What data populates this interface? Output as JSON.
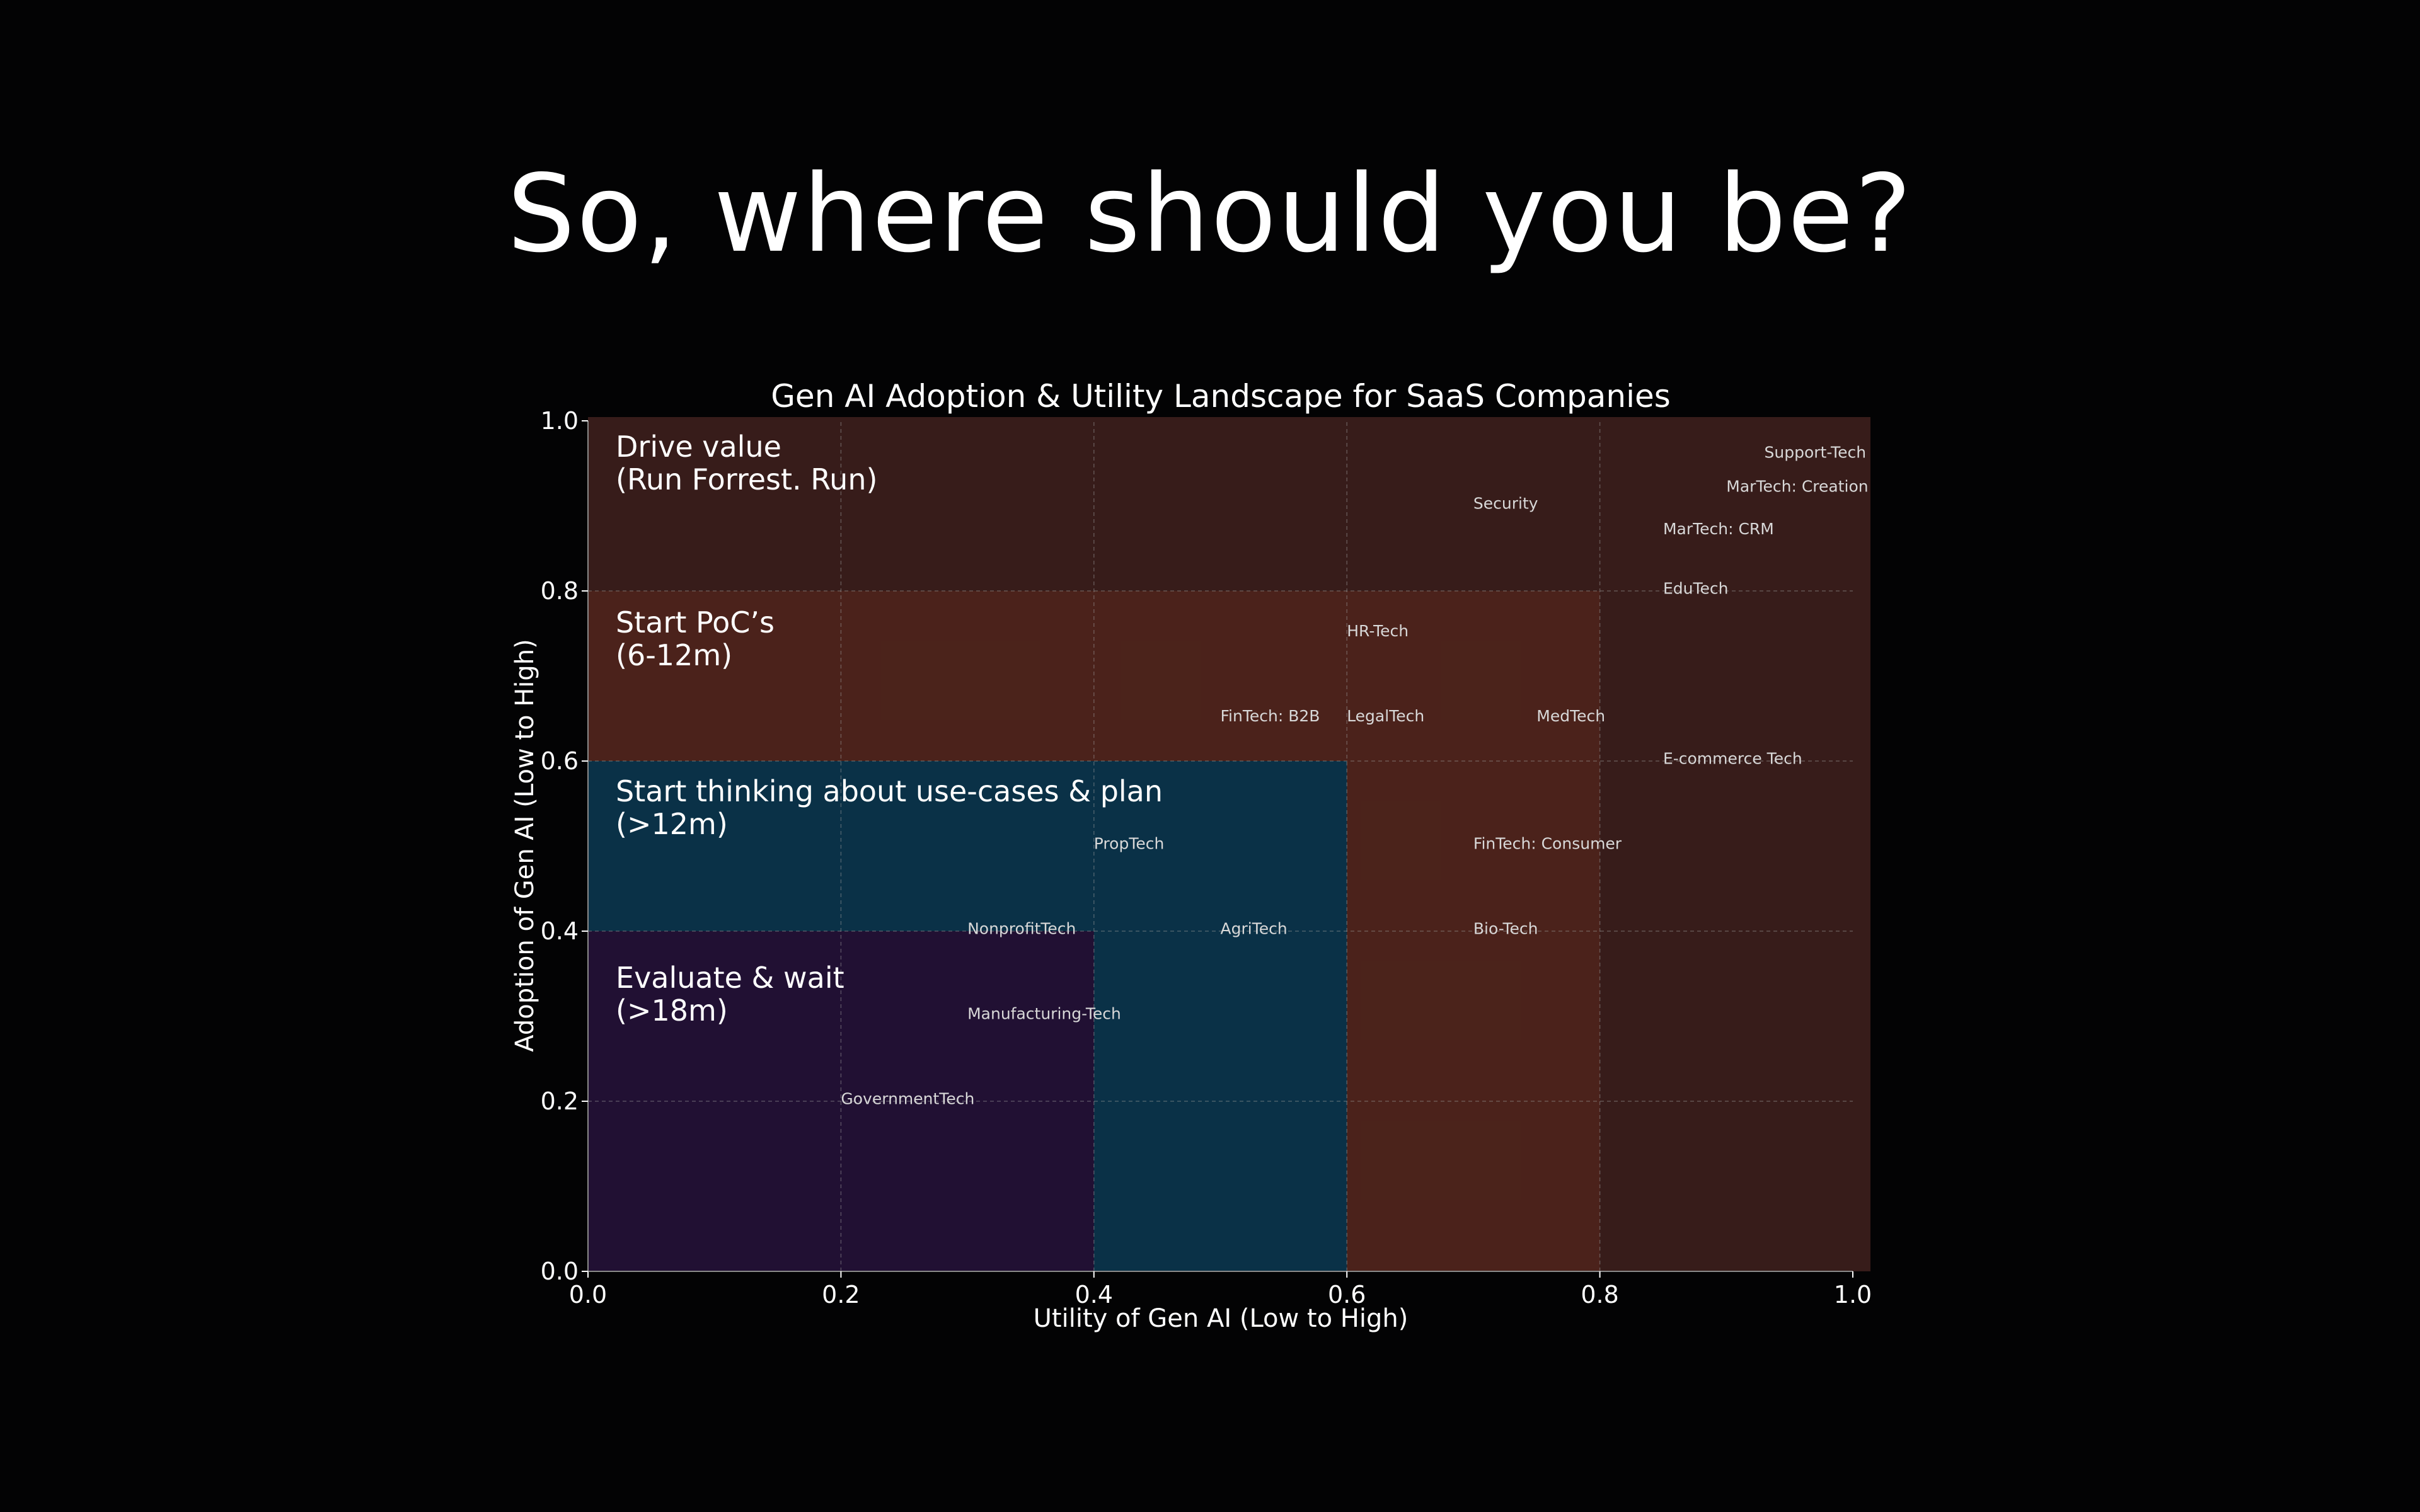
{
  "slide": {
    "title": "So, where should you be?"
  },
  "colors": {
    "background": "#030304",
    "plot_background": "#371c1a",
    "grid": "#9a9a9a",
    "text": "#ffffff",
    "point_text": "#d8d8d8"
  },
  "chart_data": {
    "type": "scatter",
    "title": "Gen AI Adoption & Utility Landscape for SaaS Companies",
    "xlabel": "Utility of Gen AI (Low to High)",
    "ylabel": "Adoption of Gen AI (Low to High)",
    "xlim": [
      0,
      1
    ],
    "ylim": [
      0,
      1
    ],
    "xticks": [
      "0.0",
      "0.2",
      "0.4",
      "0.6",
      "0.8",
      "1.0"
    ],
    "yticks": [
      "0.0",
      "0.2",
      "0.4",
      "0.6",
      "0.8",
      "1.0"
    ],
    "grid": true,
    "regions": [
      {
        "lines": [
          "Drive value",
          "(Run Forrest. Run)"
        ],
        "x0": 0,
        "x1": 1.0,
        "y0": 0.8,
        "y1": 1.0,
        "color": "#371c1a"
      },
      {
        "lines": [
          "Start PoC’s",
          "(6-12m)"
        ],
        "x0": 0,
        "x1": 0.8,
        "y0": 0,
        "y1": 0.8,
        "color": "#4c231b"
      },
      {
        "lines": [
          "Start thinking about use-cases & plan",
          "(>12m)"
        ],
        "x0": 0,
        "x1": 0.6,
        "y0": 0,
        "y1": 0.6,
        "color": "#06334a"
      },
      {
        "lines": [
          "Evaluate & wait",
          "(>18m)"
        ],
        "x0": 0,
        "x1": 0.4,
        "y0": 0,
        "y1": 0.4,
        "color": "#230f33"
      }
    ],
    "points": [
      {
        "label": "Support-Tech",
        "x": 0.93,
        "y": 0.97
      },
      {
        "label": "MarTech: Creation",
        "x": 0.9,
        "y": 0.93
      },
      {
        "label": "Security",
        "x": 0.7,
        "y": 0.91
      },
      {
        "label": "MarTech: CRM",
        "x": 0.85,
        "y": 0.88
      },
      {
        "label": "EduTech",
        "x": 0.85,
        "y": 0.81
      },
      {
        "label": "HR-Tech",
        "x": 0.6,
        "y": 0.76
      },
      {
        "label": "FinTech: B2B",
        "x": 0.5,
        "y": 0.66
      },
      {
        "label": "LegalTech",
        "x": 0.6,
        "y": 0.66
      },
      {
        "label": "MedTech",
        "x": 0.75,
        "y": 0.66
      },
      {
        "label": "E-commerce Tech",
        "x": 0.85,
        "y": 0.61
      },
      {
        "label": "PropTech",
        "x": 0.4,
        "y": 0.51
      },
      {
        "label": "FinTech: Consumer",
        "x": 0.7,
        "y": 0.51
      },
      {
        "label": "NonprofitTech",
        "x": 0.3,
        "y": 0.41
      },
      {
        "label": "AgriTech",
        "x": 0.5,
        "y": 0.41
      },
      {
        "label": "Bio-Tech",
        "x": 0.7,
        "y": 0.41
      },
      {
        "label": "Manufacturing-Tech",
        "x": 0.3,
        "y": 0.31
      },
      {
        "label": "GovernmentTech",
        "x": 0.2,
        "y": 0.21
      }
    ]
  }
}
